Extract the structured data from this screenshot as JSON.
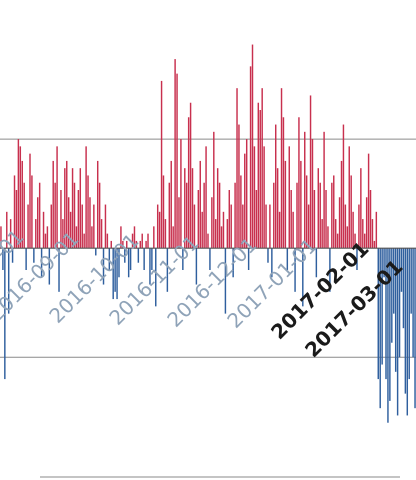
{
  "chart_data": {
    "type": "bar",
    "title": "",
    "xlabel": "",
    "ylabel": "",
    "grid": true,
    "ylim": [
      -2.5,
      3.0
    ],
    "colors": {
      "positive": "#c8304e",
      "negative": "#2f5f9e",
      "grid": "#8a8a8a",
      "tick_light": "#8fa3b8",
      "tick_dark": "#1a1a1a"
    },
    "x_tick_labels": [
      {
        "text": "2016-08-01",
        "emphasis": false
      },
      {
        "text": "2016-09-01",
        "emphasis": false
      },
      {
        "text": "2016-10-01",
        "emphasis": false
      },
      {
        "text": "2016-11-01",
        "emphasis": false
      },
      {
        "text": "2016-12-01",
        "emphasis": false
      },
      {
        "text": "2017-01-01",
        "emphasis": false
      },
      {
        "text": "2017-02-01",
        "emphasis": true
      },
      {
        "text": "2017-03-01",
        "emphasis": true
      }
    ],
    "values": [
      0.3,
      -0.3,
      -1.8,
      0.5,
      -0.9,
      0.4,
      -0.2,
      1.0,
      0.8,
      1.5,
      1.4,
      1.2,
      0.9,
      -0.3,
      0.6,
      1.3,
      1.0,
      -0.2,
      0.4,
      0.7,
      0.9,
      -0.4,
      0.5,
      0.2,
      0.3,
      -0.5,
      0.6,
      1.2,
      0.9,
      1.4,
      -0.6,
      0.8,
      0.4,
      1.1,
      1.2,
      0.7,
      0.5,
      1.1,
      0.9,
      0.3,
      0.8,
      1.1,
      0.6,
      0.2,
      1.4,
      1.0,
      0.7,
      0.3,
      0.6,
      -0.1,
      1.2,
      0.9,
      0.4,
      -0.5,
      0.6,
      0.2,
      -0.3,
      0.1,
      -0.7,
      -0.6,
      -0.7,
      -0.4,
      0.3,
      0.1,
      -0.2,
      0.1,
      -0.4,
      -0.3,
      0.2,
      0.3,
      0.1,
      -0.2,
      0.1,
      0.2,
      -0.3,
      0.1,
      0.2,
      -0.5,
      -0.3,
      0.3,
      -0.8,
      0.6,
      0.5,
      2.3,
      1.0,
      0.4,
      -0.6,
      0.9,
      1.2,
      0.3,
      2.6,
      2.4,
      0.7,
      1.5,
      -0.3,
      1.1,
      0.9,
      1.8,
      2.0,
      1.1,
      0.6,
      -0.5,
      0.8,
      1.2,
      0.5,
      0.9,
      1.4,
      0.2,
      -0.3,
      0.7,
      1.6,
      0.4,
      1.1,
      0.9,
      0.3,
      0.5,
      -0.9,
      0.4,
      0.8,
      0.6,
      -0.4,
      0.9,
      2.2,
      1.7,
      1.0,
      0.6,
      1.3,
      1.5,
      -0.3,
      2.5,
      2.8,
      1.4,
      0.8,
      2.0,
      1.9,
      2.2,
      1.4,
      0.6,
      -0.2,
      0.6,
      -0.4,
      0.9,
      1.7,
      1.1,
      0.5,
      2.2,
      1.8,
      1.2,
      -0.3,
      1.4,
      0.8,
      0.5,
      -0.6,
      0.9,
      1.8,
      1.2,
      -0.8,
      1.6,
      1.0,
      0.6,
      2.1,
      1.5,
      0.8,
      -0.4,
      1.1,
      0.9,
      0.4,
      1.6,
      0.8,
      0.3,
      -0.6,
      0.9,
      1.0,
      0.4,
      0.2,
      0.7,
      1.2,
      1.7,
      0.6,
      0.3,
      1.4,
      1.0,
      0.5,
      0.2,
      -0.3,
      0.6,
      1.1,
      0.4,
      0.2,
      0.7,
      1.3,
      0.8,
      0.4,
      0.1,
      0.5,
      -1.8,
      -2.2,
      -1.6,
      -0.4,
      -1.8,
      -2.4,
      -2.1,
      -1.3,
      -0.9,
      -1.7,
      -2.3,
      -1.5,
      -0.6,
      -1.1,
      -2.0,
      -2.3,
      -1.8,
      -0.9,
      -1.5,
      -2.2
    ]
  }
}
